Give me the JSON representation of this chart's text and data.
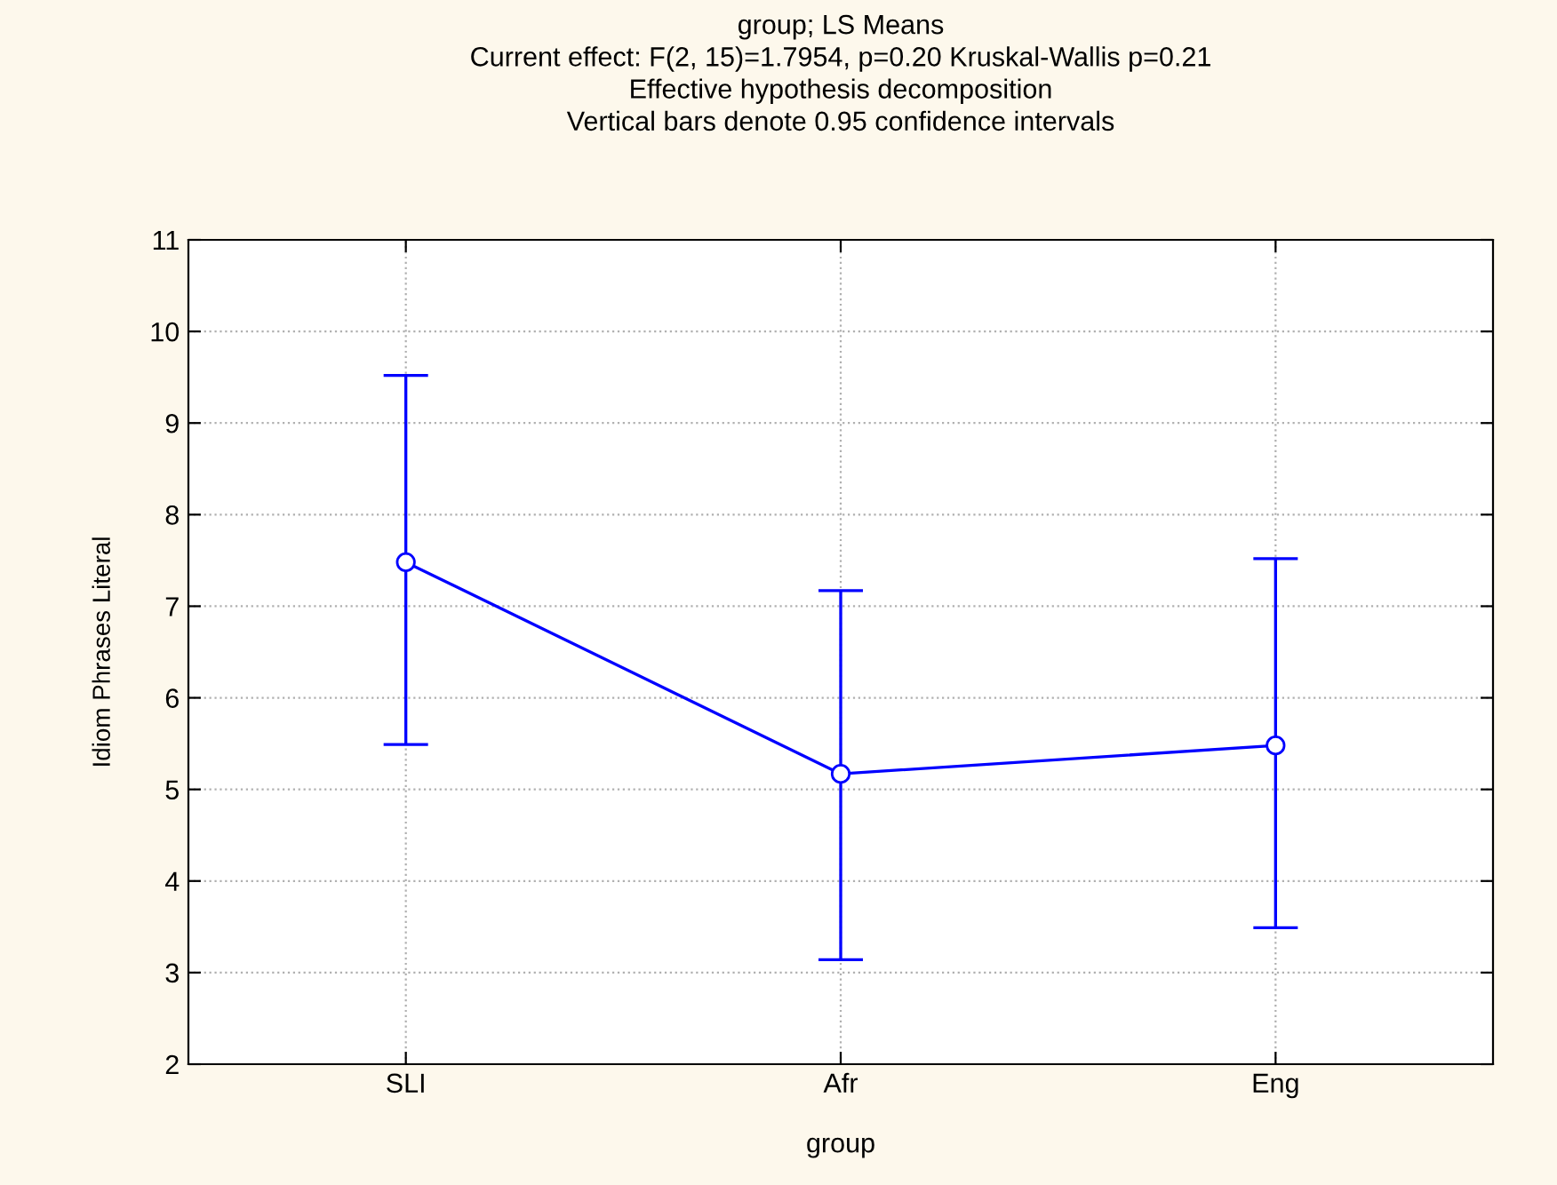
{
  "chart_data": {
    "type": "line",
    "title": "group; LS Means\nCurrent effect: F(2, 15)=1.7954, p=0.20 Kruskal-Wallis p=0.21\nEffective hypothesis decomposition\nVertical bars denote 0.95 confidence intervals",
    "xlabel": "group",
    "ylabel": "Idiom Phrases Literal",
    "categories": [
      "SLI",
      "Afr",
      "Eng"
    ],
    "series": [
      {
        "color": "#0000ff",
        "values": [
          7.48,
          5.17,
          5.48
        ],
        "errors": [
          [
            5.49,
            9.52
          ],
          [
            3.14,
            7.17
          ],
          [
            3.49,
            7.52
          ]
        ]
      }
    ],
    "ylim": [
      2,
      11
    ],
    "yticks": [
      2,
      3,
      4,
      5,
      6,
      7,
      8,
      9,
      10,
      11
    ],
    "grid": true,
    "marker": "circle",
    "line_style": "solid"
  }
}
